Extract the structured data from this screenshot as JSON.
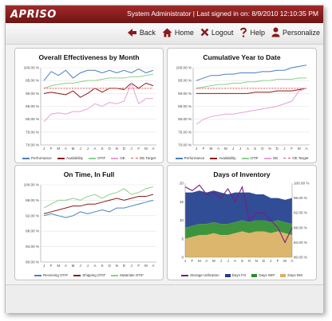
{
  "app": {
    "logo": "APRISO",
    "signin": "System Administrator | Last signed in on: 8/9/2010 12:10:35 PM"
  },
  "nav": [
    {
      "label": "Back",
      "icon": "back-arrow-icon"
    },
    {
      "label": "Home",
      "icon": "home-icon"
    },
    {
      "label": "Logout",
      "icon": "logout-x-icon"
    },
    {
      "label": "Help",
      "icon": "help-question-icon"
    },
    {
      "label": "Personalize",
      "icon": "person-icon"
    }
  ],
  "colors": {
    "accent": "#8b1a1a",
    "performance": "#4a7ebb",
    "availability": "#8b1a1a",
    "otif": "#8ccf8c",
    "oe": "#e6a0d8",
    "oe_target": "#e05050",
    "shipping": "#8b1a1a",
    "fg": "#1f3e8c",
    "wip": "#2e8b2e",
    "rm": "#d8b060",
    "storage": "#7a1a8a"
  },
  "chart_data": [
    {
      "type": "line",
      "title": "Overall Effectiveness by Month",
      "categories": [
        "J",
        "F",
        "M",
        "A",
        "M",
        "J",
        "J",
        "A",
        "S",
        "O",
        "N",
        "D",
        "J",
        "F",
        "M",
        "A"
      ],
      "yticks": [
        "100.00 %",
        "95.00 %",
        "90.00 %",
        "85.00 %",
        "80.00 %",
        "75.00 %",
        "70.00 %"
      ],
      "ylim": [
        70,
        100
      ],
      "series": [
        {
          "name": "Performance",
          "values": [
            95,
            98.5,
            97,
            99,
            96,
            98,
            99,
            99,
            98,
            99,
            98,
            99,
            98,
            99.5,
            98,
            99
          ]
        },
        {
          "name": "Availability",
          "values": [
            90,
            90.5,
            90,
            89.5,
            91,
            88.5,
            90,
            92,
            90.5,
            92,
            92,
            91.5,
            94,
            92,
            94,
            93
          ]
        },
        {
          "name": "OTIF",
          "values": [
            92,
            93,
            93.5,
            94,
            94,
            94.5,
            95,
            95,
            95.5,
            96,
            96,
            96,
            96.5,
            96.5,
            97,
            97.5
          ]
        },
        {
          "name": "OE",
          "values": [
            79,
            82,
            82.5,
            82,
            83,
            83,
            84,
            86,
            85,
            86.5,
            86,
            87,
            94,
            86,
            88,
            88
          ]
        },
        {
          "name": "OE Target",
          "values": [
            92,
            92,
            92,
            92,
            92,
            92,
            92,
            92,
            92,
            92,
            92,
            92,
            92,
            92,
            92,
            92
          ]
        }
      ],
      "legend": [
        "Performance",
        "Availability",
        "OTIF",
        "OE",
        "OE Target"
      ]
    },
    {
      "type": "line",
      "title": "Cumulative Year to Date",
      "categories": [
        "J",
        "F",
        "M",
        "A",
        "M",
        "J",
        "J",
        "A",
        "S",
        "O",
        "N",
        "D",
        "J",
        "F",
        "M",
        "A"
      ],
      "yticks": [
        "100.00 %",
        "95.00 %",
        "90.00 %",
        "85.00 %",
        "80.00 %",
        "75.00 %",
        "70.00 %"
      ],
      "ylim": [
        70,
        100
      ],
      "series": [
        {
          "name": "Performance",
          "values": [
            95,
            96,
            97,
            97,
            97.5,
            97.5,
            98,
            98,
            98,
            98.5,
            98.5,
            99,
            99,
            100,
            100.5,
            101
          ]
        },
        {
          "name": "Availability",
          "values": [
            90,
            90,
            90,
            90,
            90,
            90,
            90,
            90,
            90.5,
            90.5,
            90.5,
            91,
            91,
            91,
            91.5,
            92
          ]
        },
        {
          "name": "OTIF",
          "values": [
            92,
            92.5,
            93,
            93.5,
            93.5,
            94,
            94,
            94.5,
            94.5,
            95,
            95,
            95.5,
            95.5,
            95.5,
            96,
            96
          ]
        },
        {
          "name": "OE",
          "values": [
            78,
            80,
            81,
            81.5,
            82,
            82,
            82.5,
            83,
            83.5,
            84,
            84.5,
            85,
            86,
            87,
            91,
            92
          ]
        },
        {
          "name": "OE Target",
          "values": [
            92,
            92,
            92,
            92,
            92,
            92,
            92,
            92,
            92,
            92,
            92,
            92,
            92,
            92,
            92,
            92
          ]
        }
      ],
      "legend": [
        "Performance",
        "Availability",
        "OTIF",
        "OE",
        "OE Target"
      ]
    },
    {
      "type": "line",
      "title": "On Time, In Full",
      "categories": [
        "J",
        "F",
        "M",
        "A",
        "M",
        "J",
        "J",
        "A",
        "S",
        "O",
        "N",
        "D",
        "J",
        "F",
        "M",
        "A"
      ],
      "yticks": [
        "100.00 %",
        "96.00 %",
        "92.00 %",
        "88.00 %",
        "84.00 %",
        "80.00 %"
      ],
      "ylim": [
        80,
        100
      ],
      "series": [
        {
          "name": "Receiving OTIF",
          "values": [
            92,
            92.5,
            92,
            91.5,
            92,
            93,
            92.5,
            93,
            93.5,
            93,
            94,
            94,
            94.5,
            95,
            95.5,
            96
          ]
        },
        {
          "name": "Shipping OTIF",
          "values": [
            92.5,
            93,
            93.5,
            94,
            94.5,
            94.5,
            95,
            95,
            95.5,
            96,
            96.5,
            96,
            96.5,
            97,
            97,
            97.5
          ]
        },
        {
          "name": "Materials OTIF",
          "values": [
            94,
            95,
            96,
            96,
            96.5,
            96,
            97,
            97.5,
            96.5,
            97.5,
            98,
            99,
            97.5,
            98,
            99,
            99.5
          ]
        }
      ],
      "legend": [
        "Receiving OTIF",
        "Shipping OTIF",
        "Materials OTIF"
      ]
    },
    {
      "type": "area",
      "title": "Days of Inventory",
      "categories": [
        "J",
        "F",
        "M",
        "A",
        "M",
        "J",
        "J",
        "A",
        "S",
        "O",
        "N",
        "D",
        "J",
        "F",
        "M",
        "A"
      ],
      "yticks_left": [
        "20",
        "15",
        "10",
        "5",
        "0"
      ],
      "yticks_right": [
        "100.00 %",
        "96.00 %",
        "92.00 %",
        "88.00 %",
        "84.00 %",
        "80.00 %"
      ],
      "ylim_left": [
        0,
        20
      ],
      "ylim_right": [
        80,
        100
      ],
      "series": [
        {
          "name": "Days RM",
          "values": [
            5,
            5.5,
            6,
            6,
            6.5,
            6,
            6,
            6.5,
            7,
            6.5,
            7,
            7,
            6.5,
            7,
            6.5,
            6
          ]
        },
        {
          "name": "Days WIP",
          "values": [
            3,
            3,
            3,
            3,
            3,
            3,
            3,
            3,
            3,
            3,
            3,
            3,
            3,
            3,
            3,
            3
          ]
        },
        {
          "name": "Days FG",
          "values": [
            9.5,
            9,
            9,
            8.5,
            8.5,
            8.5,
            8,
            8,
            7.5,
            8,
            7,
            7,
            6.5,
            6,
            6,
            7
          ]
        },
        {
          "name": "Storage Utilization",
          "axis": "right",
          "values": [
            99,
            98,
            99.5,
            97,
            97.5,
            96,
            98.5,
            95,
            99,
            90,
            92,
            92,
            90,
            88,
            84,
            88
          ]
        }
      ],
      "legend": [
        "Storage Utilization",
        "Days FG",
        "Days WIP",
        "Days RM"
      ]
    }
  ]
}
